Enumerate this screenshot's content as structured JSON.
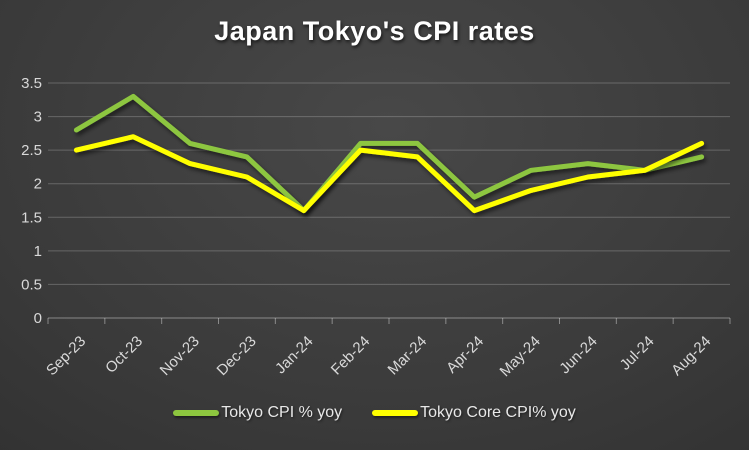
{
  "title": "Japan Tokyo's CPI rates",
  "colors": {
    "background_center": "#484848",
    "background_edge": "#262626",
    "gridline": "rgba(255,255,255,0.22)",
    "axis_line": "rgba(255,255,255,0.40)",
    "tick_label": "#d9d9d9",
    "title_text": "#ffffff",
    "legend_text": "#e8e8e8",
    "series_tokyo_cpi": "#8dc63f",
    "series_tokyo_core_cpi": "#ffff00"
  },
  "legend": {
    "items": [
      {
        "label": "Tokyo CPI % yoy",
        "color": "#8dc63f"
      },
      {
        "label": "Tokyo Core CPI% yoy",
        "color": "#ffff00"
      }
    ],
    "position": "bottom-center"
  },
  "chart_data": {
    "type": "line",
    "title": "Japan Tokyo's CPI rates",
    "categories": [
      "Sep-23",
      "Oct-23",
      "Nov-23",
      "Dec-23",
      "Jan-24",
      "Feb-24",
      "Mar-24",
      "Apr-24",
      "May-24",
      "Jun-24",
      "Jul-24",
      "Aug-24"
    ],
    "series": [
      {
        "name": "Tokyo CPI % yoy",
        "color": "#8dc63f",
        "values": [
          2.8,
          3.3,
          2.6,
          2.4,
          1.6,
          2.6,
          2.6,
          1.8,
          2.2,
          2.3,
          2.2,
          2.4
        ]
      },
      {
        "name": "Tokyo Core CPI% yoy",
        "color": "#ffff00",
        "values": [
          2.5,
          2.7,
          2.3,
          2.1,
          1.6,
          2.5,
          2.4,
          1.6,
          1.9,
          2.1,
          2.2,
          2.6
        ]
      }
    ],
    "xlabel": "",
    "ylabel": "",
    "ylim": [
      0,
      3.5
    ],
    "y_tick_step": 0.5,
    "y_tick_labels": [
      "0",
      "0.5",
      "1",
      "1.5",
      "2",
      "2.5",
      "3",
      "3.5"
    ],
    "grid": "horizontal",
    "x_label_rotation_deg": -45,
    "legend_position": "bottom",
    "line_width": 5,
    "marker": "none"
  }
}
